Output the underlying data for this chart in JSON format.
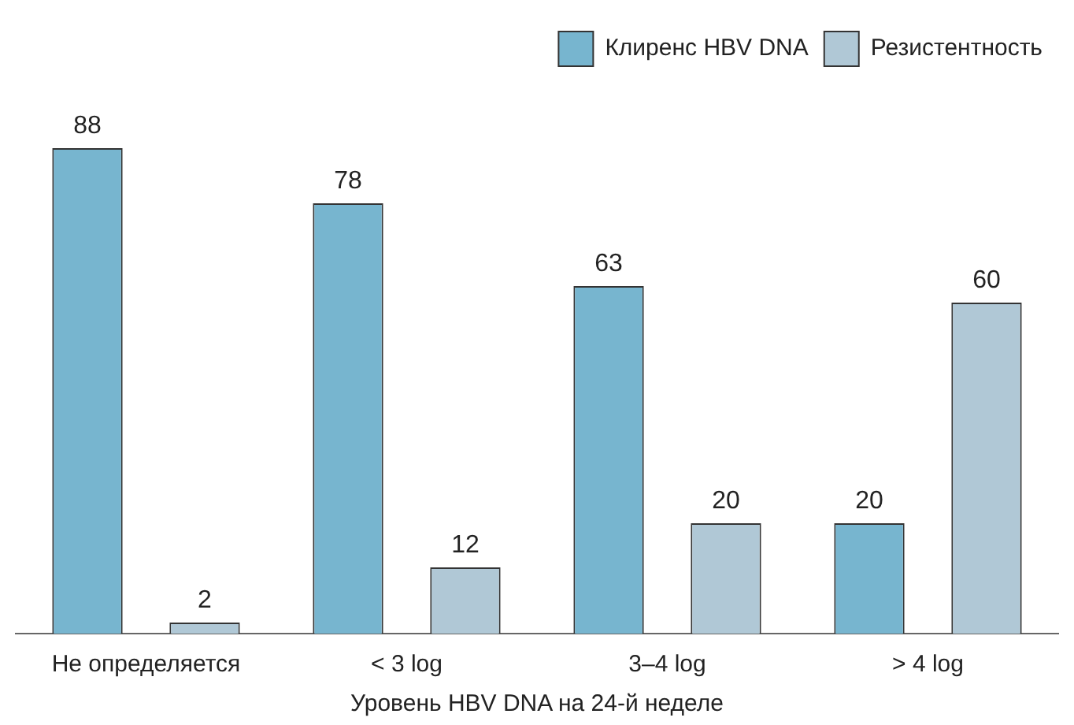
{
  "chart_data": {
    "type": "bar",
    "xlabel": "Уровень HBV DNA на 24-й неделе",
    "categories": [
      "Не определяется",
      "< 3 log",
      "3–4 log",
      "> 4 log"
    ],
    "series": [
      {
        "name": "Клиренс HBV DNA",
        "color": "#77b5cf",
        "values": [
          88,
          78,
          63,
          20
        ]
      },
      {
        "name": "Резистентность",
        "color": "#b0c8d6",
        "values": [
          2,
          12,
          20,
          60
        ]
      }
    ],
    "data_labels": true,
    "legend": "top right",
    "grid": false
  }
}
